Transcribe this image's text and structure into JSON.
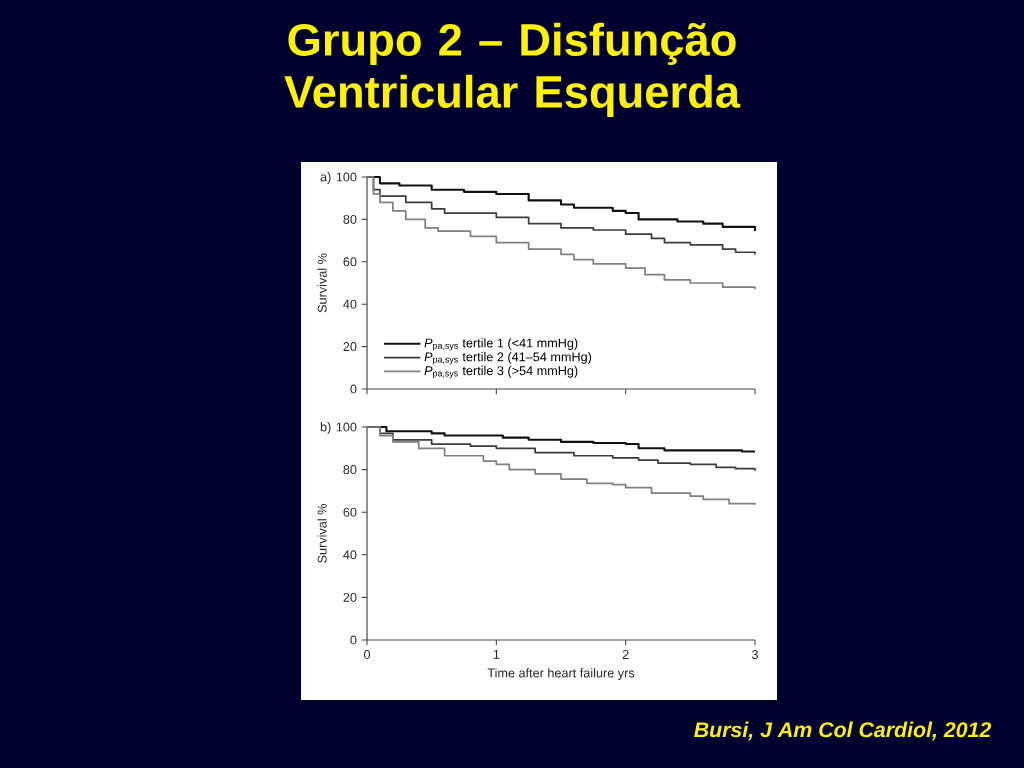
{
  "chart_data": [
    {
      "type": "step",
      "title": "Grupo 2 – Disfunção Ventricular Esquerda",
      "ylabel": "Survival %",
      "annotations": [
        "a)"
      ],
      "xlim": [
        0,
        3
      ],
      "ylim": [
        0,
        100
      ],
      "xticks": [
        0,
        1,
        2,
        3
      ],
      "yticks": [
        0,
        20,
        40,
        60,
        80,
        100
      ],
      "tick_labels": "y",
      "legend": "bottom left",
      "grid": false,
      "marker": "none",
      "line_style": "solid",
      "series": [
        {
          "name": "*P*$_{pa,sys}$ tertile 1 (<41 mmHg)",
          "color": "#111111",
          "x": [
            0,
            0.1,
            0.25,
            0.5,
            0.75,
            1.0,
            1.25,
            1.5,
            1.6,
            1.9,
            2.0,
            2.1,
            2.4,
            2.6,
            2.75,
            3.0
          ],
          "values": [
            100,
            97,
            96,
            94,
            93,
            92,
            89,
            87,
            85.5,
            84,
            83,
            80,
            79,
            78,
            76.5,
            74.5
          ]
        },
        {
          "name": "*P*$_{pa,sys}$ tertile 2 (41–54 mmHg)",
          "color": "#3c3c3c",
          "x": [
            0,
            0.05,
            0.1,
            0.3,
            0.5,
            0.6,
            1.0,
            1.25,
            1.5,
            1.75,
            2.0,
            2.2,
            2.3,
            2.5,
            2.75,
            2.85,
            3.0
          ],
          "values": [
            100,
            94,
            91,
            88,
            85,
            83,
            81,
            78,
            76,
            75,
            73,
            71,
            69,
            68,
            66,
            64.5,
            63.5
          ]
        },
        {
          "name": "*P*$_{pa,sys}$ tertile 3 (>54 mmHg)",
          "color": "#808080",
          "x": [
            0,
            0.05,
            0.1,
            0.2,
            0.3,
            0.45,
            0.55,
            0.8,
            1.0,
            1.25,
            1.5,
            1.6,
            1.75,
            2.0,
            2.15,
            2.3,
            2.5,
            2.75,
            3.0
          ],
          "values": [
            100,
            92,
            88,
            84,
            80,
            76,
            74.5,
            72,
            69,
            66,
            63.5,
            61,
            59,
            57,
            54,
            51.5,
            50,
            48,
            47
          ]
        }
      ]
    },
    {
      "type": "step",
      "xlabel": "Time after heart failure yrs",
      "ylabel": "Survival %",
      "annotations": [
        "b)",
        "Bursi, J Am Col Cardiol, 2012"
      ],
      "xlim": [
        0,
        3
      ],
      "ylim": [
        0,
        100
      ],
      "xticks": [
        0,
        1,
        2,
        3
      ],
      "yticks": [
        0,
        20,
        40,
        60,
        80,
        100
      ],
      "grid": false,
      "marker": "none",
      "line_style": "solid",
      "series": [
        {
          "color": "#111111",
          "x": [
            0,
            0.15,
            0.5,
            0.6,
            1.0,
            1.05,
            1.25,
            1.5,
            1.75,
            2.0,
            2.1,
            2.3,
            2.5,
            2.85,
            2.9,
            3.0
          ],
          "values": [
            100,
            98,
            97,
            96,
            96,
            95,
            94,
            93,
            92.5,
            92,
            90,
            89,
            89,
            89,
            88.5,
            88.5
          ]
        },
        {
          "color": "#3c3c3c",
          "x": [
            0,
            0.1,
            0.2,
            0.5,
            0.8,
            1.0,
            1.3,
            1.6,
            1.9,
            2.1,
            2.25,
            2.5,
            2.7,
            2.85,
            3.0
          ],
          "values": [
            100,
            97,
            94,
            92,
            91,
            90,
            88,
            86.5,
            85.5,
            84.5,
            83,
            82.5,
            81,
            80.5,
            79.5
          ]
        },
        {
          "color": "#808080",
          "x": [
            0,
            0.1,
            0.2,
            0.4,
            0.6,
            0.9,
            1.0,
            1.1,
            1.3,
            1.5,
            1.7,
            1.9,
            2.0,
            2.2,
            2.5,
            2.6,
            2.8,
            3.0
          ],
          "values": [
            100,
            96,
            93,
            90,
            86.5,
            84,
            82.5,
            80,
            78,
            75.5,
            73.5,
            73,
            71.5,
            69,
            67.5,
            66,
            64,
            63.5
          ]
        }
      ]
    }
  ]
}
